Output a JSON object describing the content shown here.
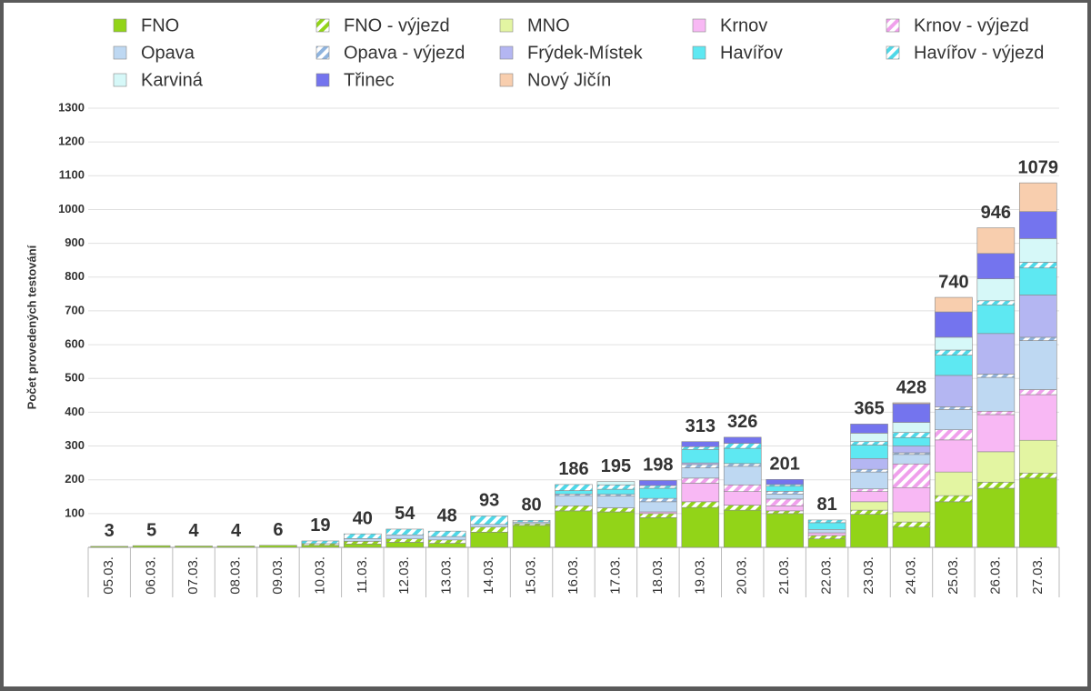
{
  "chart_data": {
    "type": "stacked_bar",
    "y_axis_label": "Počet provedených testování",
    "categories": [
      "05.03.",
      "06.03.",
      "07.03.",
      "08.03.",
      "09.03.",
      "10.03.",
      "11.03.",
      "12.03.",
      "13.03.",
      "14.03.",
      "15.03.",
      "16.03.",
      "17.03.",
      "18.03.",
      "19.03.",
      "20.03.",
      "21.03.",
      "22.03.",
      "23.03.",
      "24.03.",
      "25.03.",
      "26.03.",
      "27.03."
    ],
    "series": [
      {
        "name": "FNO",
        "color": "#92d418",
        "hatched": false,
        "values": [
          3,
          5,
          4,
          4,
          6,
          6,
          10,
          15,
          12,
          45,
          65,
          108,
          105,
          88,
          118,
          110,
          100,
          25,
          98,
          60,
          135,
          175,
          205
        ]
      },
      {
        "name": "FNO - výjezd",
        "color": "#92d418",
        "hatched": true,
        "values": [
          0,
          0,
          0,
          0,
          0,
          5,
          8,
          10,
          10,
          15,
          5,
          15,
          12,
          12,
          17,
          15,
          8,
          10,
          12,
          15,
          18,
          18,
          15
        ]
      },
      {
        "name": "MNO",
        "color": "#e3f5a2",
        "hatched": false,
        "values": [
          0,
          0,
          0,
          0,
          0,
          0,
          0,
          0,
          0,
          0,
          0,
          0,
          0,
          0,
          0,
          0,
          0,
          0,
          25,
          30,
          70,
          90,
          97
        ]
      },
      {
        "name": "Krnov",
        "color": "#f8b8f4",
        "hatched": false,
        "values": [
          0,
          0,
          0,
          0,
          0,
          0,
          0,
          0,
          0,
          0,
          0,
          0,
          0,
          5,
          55,
          40,
          15,
          8,
          30,
          72,
          95,
          110,
          135
        ]
      },
      {
        "name": "Krnov - výjezd",
        "color": "#f0a0ec",
        "hatched": true,
        "values": [
          0,
          0,
          0,
          0,
          0,
          0,
          0,
          0,
          0,
          0,
          0,
          0,
          0,
          0,
          15,
          20,
          20,
          0,
          8,
          70,
          30,
          10,
          15
        ]
      },
      {
        "name": "Opava",
        "color": "#bed8f2",
        "hatched": false,
        "values": [
          0,
          0,
          0,
          0,
          0,
          0,
          8,
          12,
          10,
          8,
          5,
          30,
          35,
          30,
          30,
          55,
          15,
          10,
          50,
          28,
          60,
          100,
          145
        ]
      },
      {
        "name": "Opava - výjezd",
        "color": "#8fb4de",
        "hatched": true,
        "values": [
          0,
          0,
          0,
          0,
          0,
          0,
          0,
          0,
          0,
          0,
          0,
          5,
          5,
          10,
          10,
          8,
          8,
          0,
          8,
          5,
          8,
          10,
          10
        ]
      },
      {
        "name": "Frýdek-Místek",
        "color": "#b4b6f2",
        "hatched": false,
        "values": [
          0,
          0,
          0,
          0,
          0,
          0,
          0,
          0,
          0,
          0,
          0,
          0,
          0,
          0,
          5,
          0,
          0,
          0,
          32,
          20,
          93,
          120,
          125
        ]
      },
      {
        "name": "Havířov",
        "color": "#5ee8f2",
        "hatched": false,
        "values": [
          0,
          0,
          0,
          0,
          0,
          0,
          0,
          0,
          0,
          0,
          0,
          10,
          15,
          30,
          40,
          45,
          15,
          20,
          40,
          25,
          60,
          85,
          80
        ]
      },
      {
        "name": "Havířov - výjezd",
        "color": "#4ed8e8",
        "hatched": true,
        "values": [
          0,
          0,
          0,
          0,
          0,
          8,
          14,
          17,
          16,
          25,
          5,
          18,
          13,
          8,
          8,
          15,
          5,
          8,
          10,
          15,
          15,
          12,
          17
        ]
      },
      {
        "name": "Karviná",
        "color": "#d6f8f8",
        "hatched": false,
        "values": [
          0,
          0,
          0,
          0,
          0,
          0,
          0,
          0,
          0,
          0,
          0,
          0,
          10,
          0,
          0,
          0,
          0,
          0,
          25,
          30,
          38,
          65,
          70
        ]
      },
      {
        "name": "Třinec",
        "color": "#7474ee",
        "hatched": false,
        "values": [
          0,
          0,
          0,
          0,
          0,
          0,
          0,
          0,
          0,
          0,
          0,
          0,
          0,
          15,
          15,
          18,
          15,
          0,
          27,
          55,
          75,
          75,
          80
        ]
      },
      {
        "name": "Nový Jičín",
        "color": "#f8ceae",
        "hatched": false,
        "values": [
          0,
          0,
          0,
          0,
          0,
          0,
          0,
          0,
          0,
          0,
          0,
          0,
          0,
          0,
          0,
          0,
          0,
          0,
          0,
          3,
          43,
          76,
          85
        ]
      }
    ],
    "totals": [
      3,
      5,
      4,
      4,
      6,
      19,
      40,
      54,
      48,
      93,
      80,
      186,
      195,
      198,
      313,
      326,
      201,
      81,
      365,
      428,
      740,
      946,
      1079
    ],
    "ylim": [
      0,
      1300
    ],
    "yticks": [
      100,
      200,
      300,
      400,
      500,
      600,
      700,
      800,
      900,
      1000,
      1100,
      1200,
      1300
    ],
    "grid": true
  }
}
